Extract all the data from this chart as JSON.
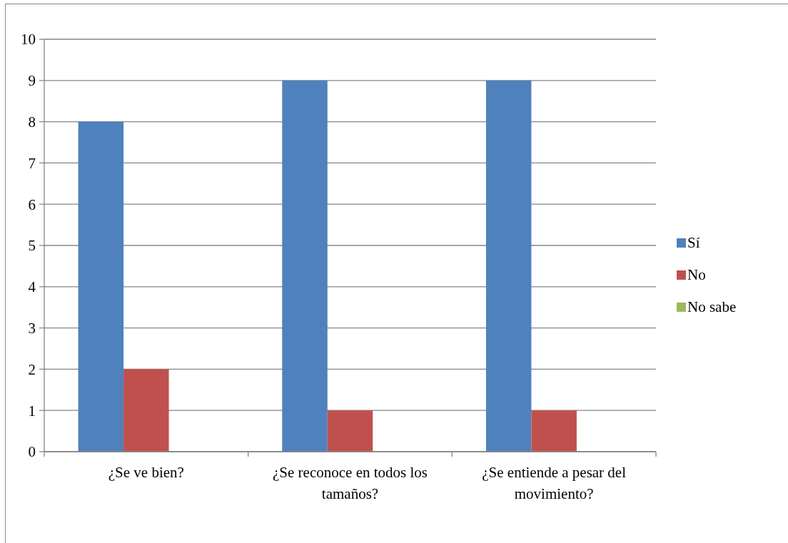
{
  "chart_data": {
    "type": "bar",
    "categories": [
      "¿Se ve bien?",
      "¿Se reconoce en todos los tamaños?",
      "¿Se entiende a pesar del movimiento?"
    ],
    "series": [
      {
        "name": "Sí",
        "color": "#4f81bd",
        "values": [
          8,
          9,
          9
        ]
      },
      {
        "name": "No",
        "color": "#c0504d",
        "values": [
          2,
          1,
          1
        ]
      },
      {
        "name": "No sabe",
        "color": "#9bbb59",
        "values": [
          0,
          0,
          0
        ]
      }
    ],
    "ylim": [
      0,
      10
    ],
    "yticks": [
      0,
      1,
      2,
      3,
      4,
      5,
      6,
      7,
      8,
      9,
      10
    ],
    "grid": "y",
    "legend": "right"
  }
}
